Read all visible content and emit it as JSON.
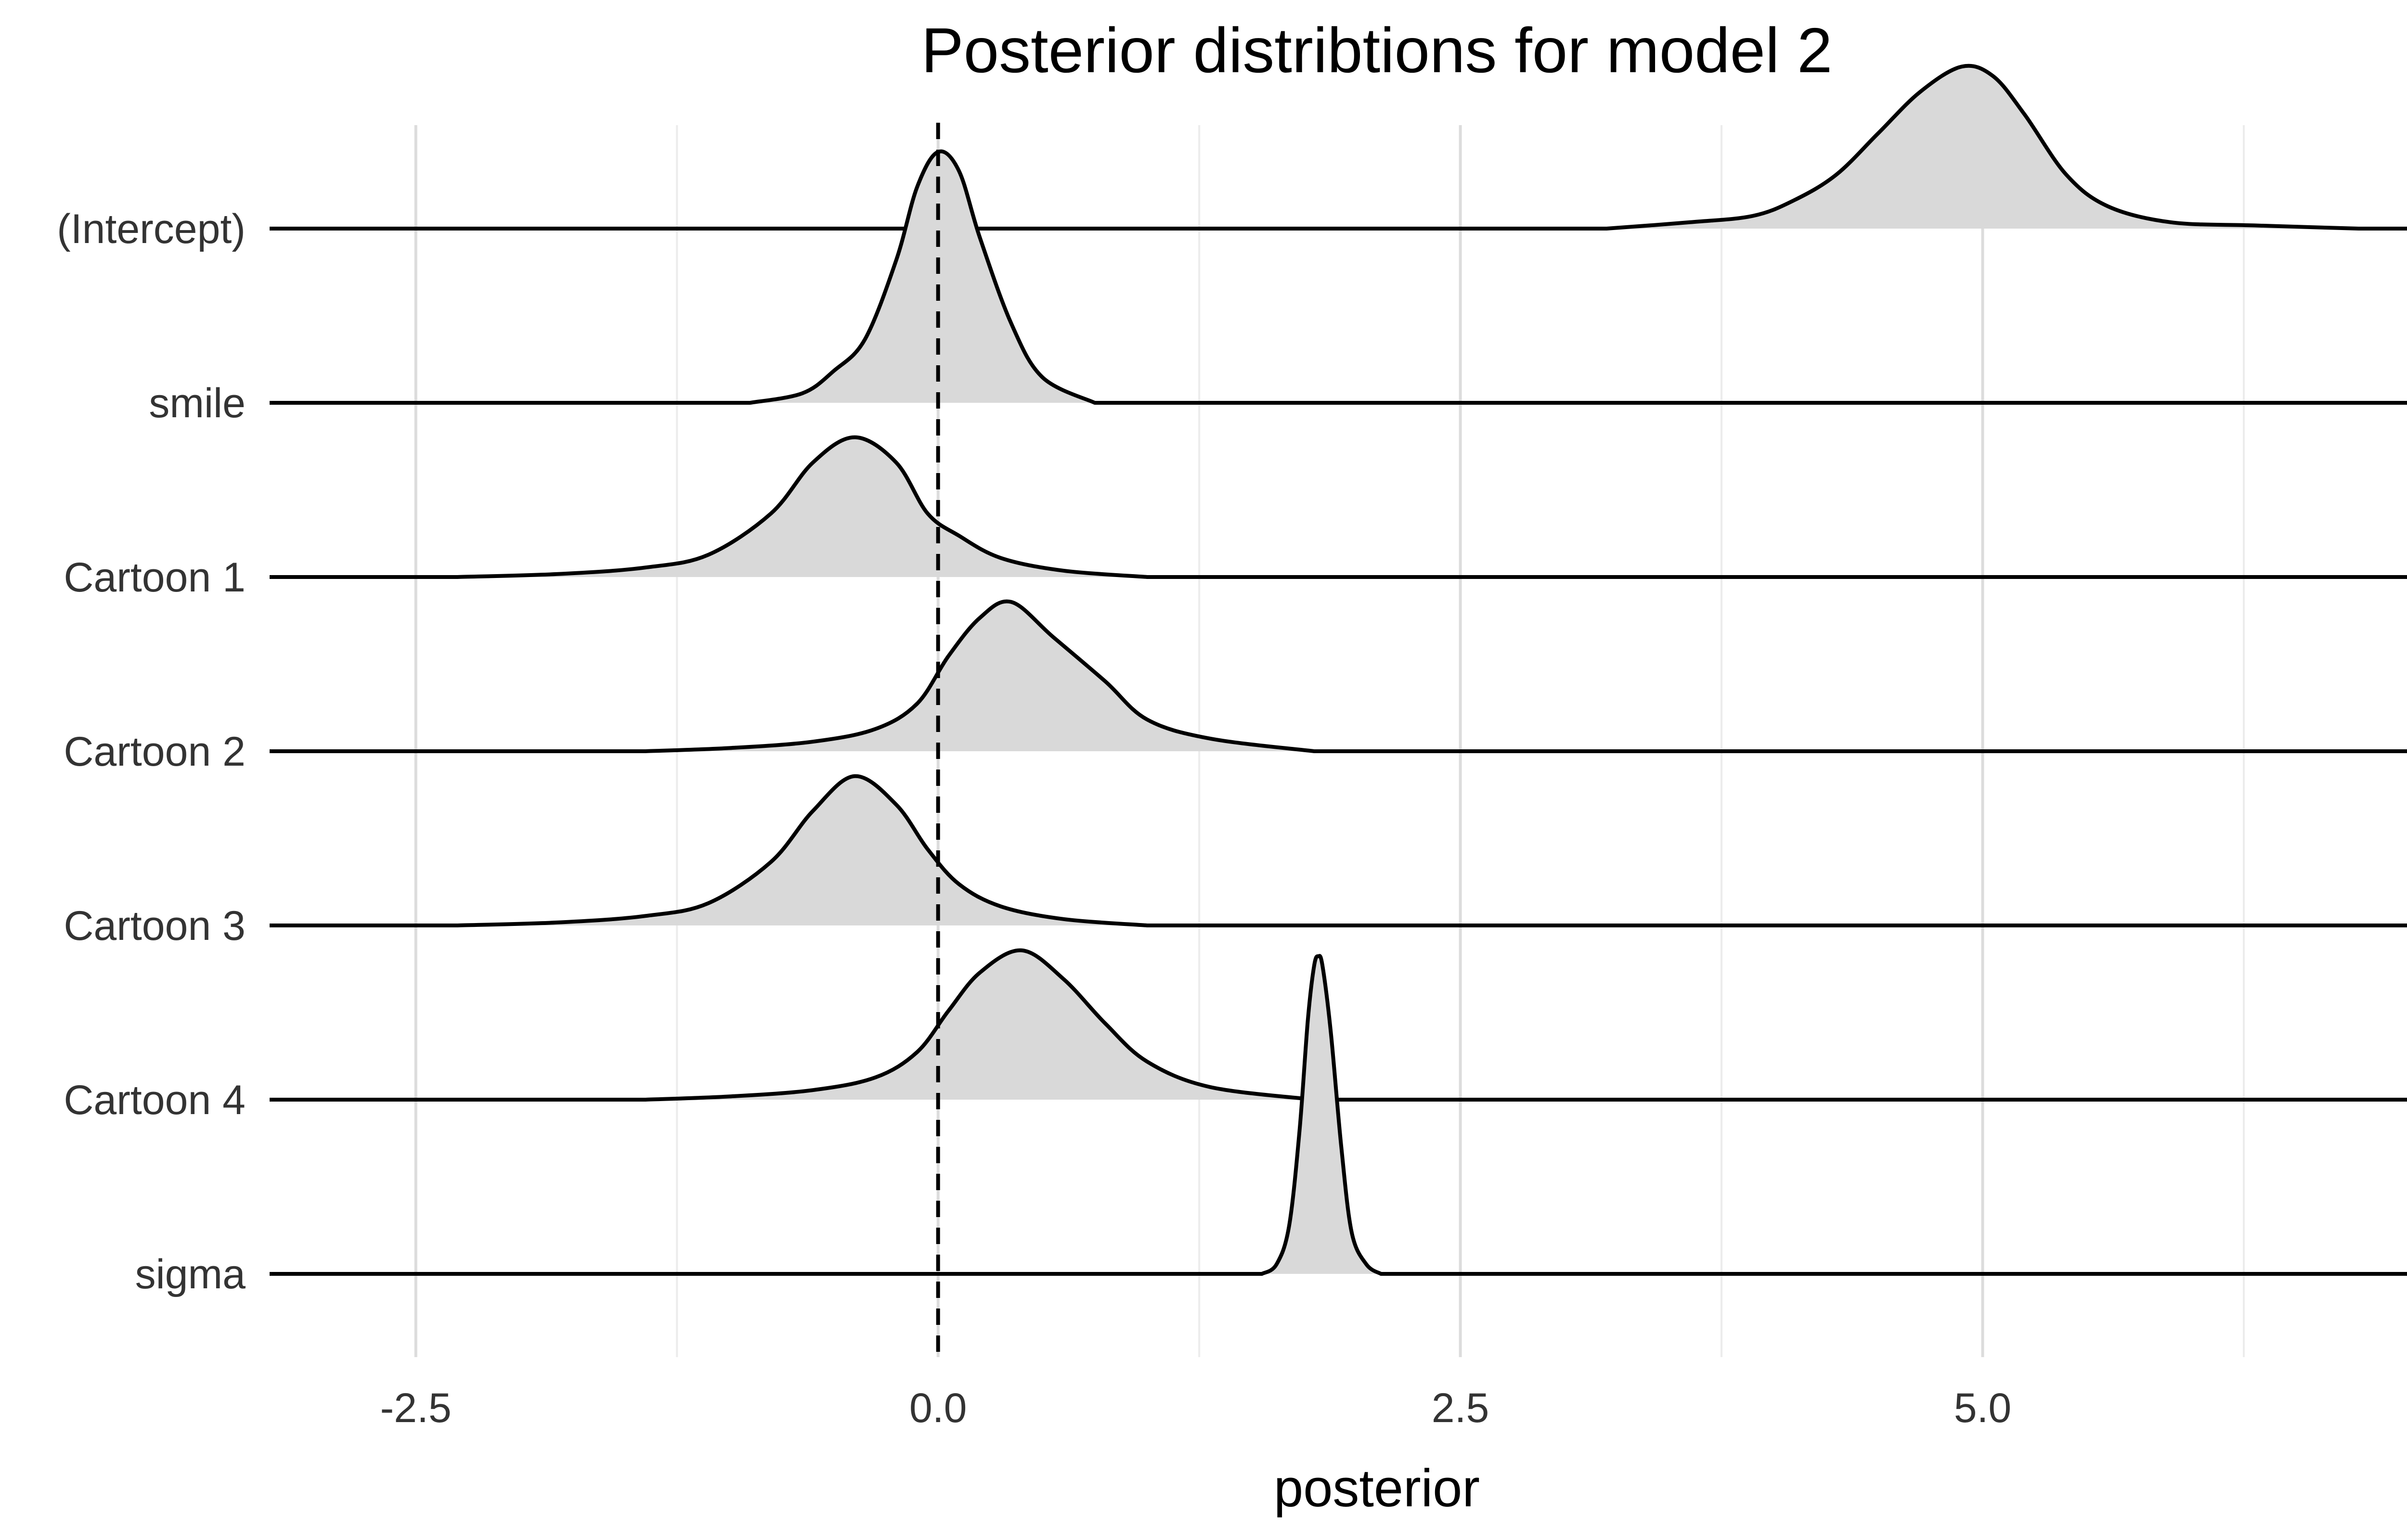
{
  "chart_data": {
    "type": "ridgeline",
    "title": "Posterior distribtions for model 2",
    "xlabel": "posterior",
    "ylabel": "",
    "xlim": [
      -3.2,
      7.4
    ],
    "x_ticks": [
      {
        "value": -2.5,
        "label": "-2.5"
      },
      {
        "value": 0.0,
        "label": "0.0"
      },
      {
        "value": 2.5,
        "label": "2.5"
      },
      {
        "value": 5.0,
        "label": "5.0"
      }
    ],
    "x_minor_ticks": [
      -1.25,
      1.25,
      3.75,
      6.25
    ],
    "reference_line": {
      "x": 0,
      "style": "dashed",
      "color": "#000000"
    },
    "fill_color": "#d9d9d9",
    "line_color": "#000000",
    "grid": true,
    "series": [
      {
        "name": "(Intercept)",
        "peak_x": 4.9,
        "peak_density": 0.51,
        "x": [
          3.2,
          3.6,
          3.9,
          4.1,
          4.3,
          4.5,
          4.7,
          4.9,
          5.05,
          5.2,
          5.4,
          5.6,
          5.9,
          6.3,
          6.8
        ],
        "density": [
          0.0,
          0.02,
          0.04,
          0.09,
          0.17,
          0.3,
          0.43,
          0.51,
          0.48,
          0.36,
          0.17,
          0.07,
          0.02,
          0.01,
          0.0
        ]
      },
      {
        "name": "smile",
        "peak_x": 0.0,
        "peak_density": 0.79,
        "x": [
          -0.9,
          -0.65,
          -0.5,
          -0.35,
          -0.2,
          -0.1,
          0.0,
          0.1,
          0.2,
          0.35,
          0.5,
          0.75
        ],
        "density": [
          0.0,
          0.03,
          0.1,
          0.2,
          0.45,
          0.68,
          0.79,
          0.73,
          0.52,
          0.25,
          0.08,
          0.0
        ]
      },
      {
        "name": "Cartoon 1",
        "peak_x": -0.4,
        "peak_density": 0.44,
        "x": [
          -2.3,
          -1.8,
          -1.4,
          -1.1,
          -0.8,
          -0.6,
          -0.4,
          -0.2,
          -0.05,
          0.1,
          0.3,
          0.6,
          1.0
        ],
        "density": [
          0.0,
          0.01,
          0.03,
          0.07,
          0.2,
          0.36,
          0.44,
          0.36,
          0.2,
          0.13,
          0.06,
          0.02,
          0.0
        ]
      },
      {
        "name": "Cartoon 2",
        "peak_x": 0.3,
        "peak_density": 0.47,
        "x": [
          -1.4,
          -1.0,
          -0.6,
          -0.3,
          -0.1,
          0.05,
          0.2,
          0.35,
          0.55,
          0.8,
          1.0,
          1.3,
          1.8
        ],
        "density": [
          0.0,
          0.01,
          0.03,
          0.07,
          0.15,
          0.3,
          0.42,
          0.47,
          0.36,
          0.22,
          0.1,
          0.04,
          0.0
        ]
      },
      {
        "name": "Cartoon 3",
        "peak_x": -0.4,
        "peak_density": 0.47,
        "x": [
          -2.3,
          -1.8,
          -1.4,
          -1.1,
          -0.8,
          -0.6,
          -0.4,
          -0.2,
          -0.05,
          0.1,
          0.3,
          0.6,
          1.0
        ],
        "density": [
          0.0,
          0.01,
          0.03,
          0.07,
          0.2,
          0.36,
          0.47,
          0.38,
          0.24,
          0.13,
          0.06,
          0.02,
          0.0
        ]
      },
      {
        "name": "Cartoon 4",
        "peak_x": 0.4,
        "peak_density": 0.47,
        "x": [
          -1.4,
          -1.0,
          -0.6,
          -0.3,
          -0.1,
          0.05,
          0.2,
          0.4,
          0.6,
          0.8,
          1.0,
          1.3,
          1.8
        ],
        "density": [
          0.0,
          0.01,
          0.03,
          0.07,
          0.15,
          0.28,
          0.4,
          0.47,
          0.38,
          0.24,
          0.12,
          0.04,
          0.0
        ]
      },
      {
        "name": "sigma",
        "peak_x": 1.82,
        "peak_density": 1.0,
        "x": [
          1.55,
          1.62,
          1.68,
          1.73,
          1.77,
          1.8,
          1.82,
          1.84,
          1.88,
          1.93,
          1.98,
          2.05,
          2.12
        ],
        "density": [
          0.0,
          0.03,
          0.15,
          0.45,
          0.8,
          0.97,
          1.0,
          0.97,
          0.76,
          0.4,
          0.13,
          0.03,
          0.0
        ]
      }
    ]
  }
}
